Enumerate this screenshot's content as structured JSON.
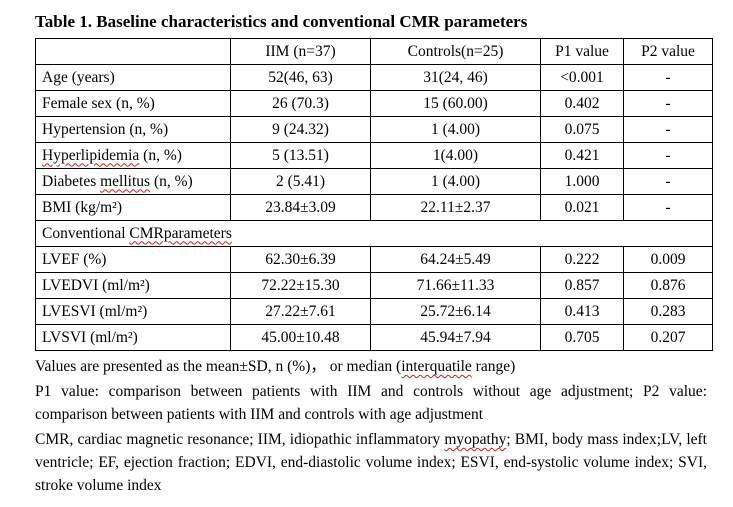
{
  "page": {
    "title": "Table 1. Baseline characteristics and conventional CMR parameters"
  },
  "table": {
    "columns": [
      "",
      "IIM (n=37)",
      "Controls(n=25)",
      "P1 value",
      "P2 value"
    ],
    "rows": [
      {
        "label": [
          {
            "t": "Age (years)"
          }
        ],
        "values": [
          "52(46, 63)",
          "31(24, 46)",
          "<0.001",
          "-"
        ]
      },
      {
        "label": [
          {
            "t": "Female sex (n, %)"
          }
        ],
        "values": [
          "26 (70.3)",
          "15 (60.00)",
          "0.402",
          "-"
        ]
      },
      {
        "label": [
          {
            "t": "Hypertension (n, %)"
          }
        ],
        "values": [
          "9 (24.32)",
          "1 (4.00)",
          "0.075",
          "-"
        ]
      },
      {
        "label": [
          {
            "t": "Hyperlipidemia",
            "w": true
          },
          {
            "t": " (n, %)"
          }
        ],
        "values": [
          "5 (13.51)",
          "1(4.00)",
          "0.421",
          "-"
        ]
      },
      {
        "label": [
          {
            "t": "Diabetes "
          },
          {
            "t": "mellitus",
            "w": true
          },
          {
            "t": " (n, %)"
          }
        ],
        "values": [
          "2 (5.41)",
          "1 (4.00)",
          "1.000",
          "-"
        ]
      },
      {
        "label": [
          {
            "t": "BMI (kg/m²)"
          }
        ],
        "values": [
          "23.84±3.09",
          "22.11±2.37",
          "0.021",
          "-"
        ]
      },
      {
        "section": [
          {
            "t": "Conventional "
          },
          {
            "t": "CMRparameters",
            "w": true
          }
        ]
      },
      {
        "label": [
          {
            "t": "LVEF (%)"
          }
        ],
        "values": [
          "62.30±6.39",
          "64.24±5.49",
          "0.222",
          "0.009"
        ]
      },
      {
        "label": [
          {
            "t": "LVEDVI (ml/m²)"
          }
        ],
        "values": [
          "72.22±15.30",
          "71.66±11.33",
          "0.857",
          "0.876"
        ]
      },
      {
        "label": [
          {
            "t": "LVESVI (ml/m²)"
          }
        ],
        "values": [
          "27.22±7.61",
          "25.72±6.14",
          "0.413",
          "0.283"
        ]
      },
      {
        "label": [
          {
            "t": "LVSVI (ml/m²)"
          }
        ],
        "values": [
          "45.00±10.48",
          "45.94±7.94",
          "0.705",
          "0.207"
        ]
      }
    ]
  },
  "footnotes": [
    [
      {
        "t": "Values are presented as the mean±SD, n (%)，  or median ("
      },
      {
        "t": "interquatile",
        "w": true
      },
      {
        "t": " range)"
      }
    ],
    [
      {
        "t": "P1 value: comparison between patients with IIM and controls without age adjustment; P2 value: comparison between patients with IIM and controls with age adjustment"
      }
    ],
    [
      {
        "t": "CMR, cardiac magnetic resonance; IIM, idiopathic inflammatory "
      },
      {
        "t": "myopathy",
        "w": true
      },
      {
        "t": "; BMI, body mass index;LV, left ventricle; EF, ejection fraction; EDVI, end-diastolic volume index; ESVI, end-systolic volume index; SVI, stroke volume index"
      }
    ]
  ]
}
